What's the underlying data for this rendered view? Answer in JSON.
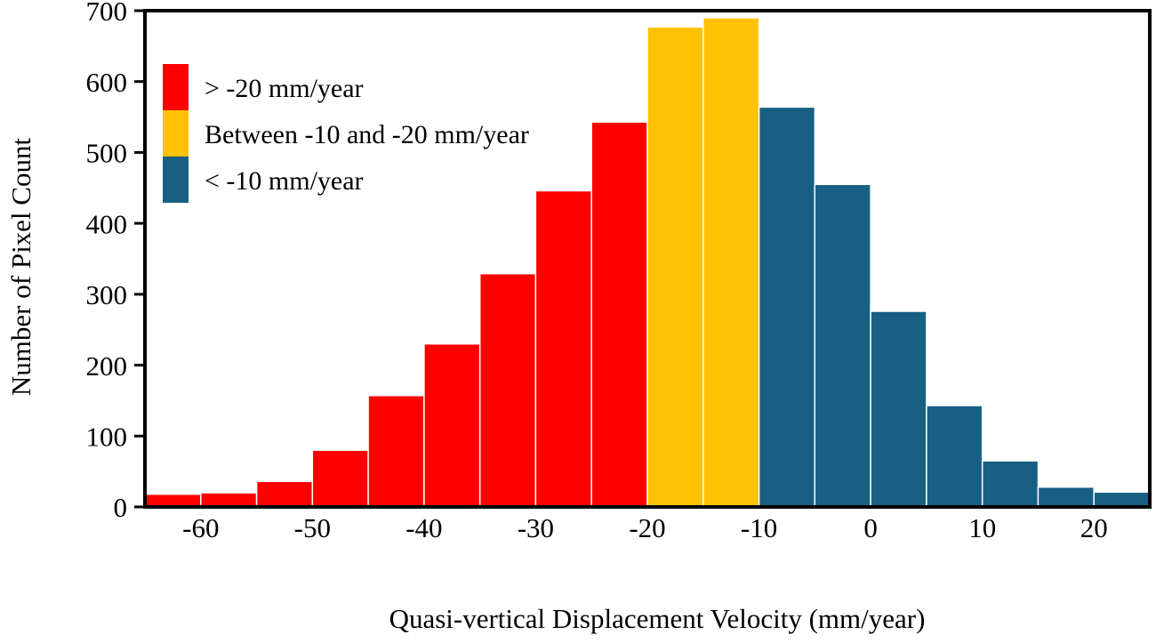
{
  "figure": {
    "background": "#ffffff",
    "axis_color": "#000000",
    "bar_edge_color": "#ffffff"
  },
  "chart_data": {
    "type": "bar",
    "subtype": "histogram",
    "title": "",
    "xlabel": "Quasi-vertical Displacement Velocity (mm/year)",
    "ylabel": "Number of Pixel Count",
    "xlim": [
      -65,
      25
    ],
    "ylim": [
      0,
      700
    ],
    "x_ticks": [
      -60,
      -50,
      -40,
      -30,
      -20,
      -10,
      0,
      10,
      20
    ],
    "y_ticks": [
      0,
      100,
      200,
      300,
      400,
      500,
      600,
      700
    ],
    "grid": false,
    "legend_position": "upper-left",
    "bin_width": 5,
    "bars": [
      {
        "bin_start": -65,
        "bin_end": -60,
        "value": 18,
        "color": "#FF0000"
      },
      {
        "bin_start": -60,
        "bin_end": -55,
        "value": 20,
        "color": "#FF0000"
      },
      {
        "bin_start": -55,
        "bin_end": -50,
        "value": 36,
        "color": "#FF0000"
      },
      {
        "bin_start": -50,
        "bin_end": -45,
        "value": 80,
        "color": "#FF0000"
      },
      {
        "bin_start": -45,
        "bin_end": -40,
        "value": 157,
        "color": "#FF0000"
      },
      {
        "bin_start": -40,
        "bin_end": -35,
        "value": 230,
        "color": "#FF0000"
      },
      {
        "bin_start": -35,
        "bin_end": -30,
        "value": 329,
        "color": "#FF0000"
      },
      {
        "bin_start": -30,
        "bin_end": -25,
        "value": 446,
        "color": "#FF0000"
      },
      {
        "bin_start": -25,
        "bin_end": -20,
        "value": 543,
        "color": "#FF0000"
      },
      {
        "bin_start": -20,
        "bin_end": -15,
        "value": 677,
        "color": "#FFC104"
      },
      {
        "bin_start": -15,
        "bin_end": -10,
        "value": 690,
        "color": "#FFC104"
      },
      {
        "bin_start": -10,
        "bin_end": -5,
        "value": 564,
        "color": "#176083"
      },
      {
        "bin_start": -5,
        "bin_end": 0,
        "value": 455,
        "color": "#176083"
      },
      {
        "bin_start": 0,
        "bin_end": 5,
        "value": 276,
        "color": "#176083"
      },
      {
        "bin_start": 5,
        "bin_end": 10,
        "value": 143,
        "color": "#176083"
      },
      {
        "bin_start": 10,
        "bin_end": 15,
        "value": 65,
        "color": "#176083"
      },
      {
        "bin_start": 15,
        "bin_end": 20,
        "value": 28,
        "color": "#176083"
      },
      {
        "bin_start": 20,
        "bin_end": 25,
        "value": 21,
        "color": "#176083"
      }
    ],
    "legend": [
      {
        "label": "> -20 mm/year",
        "color": "#FF0000"
      },
      {
        "label": "Between -10 and -20 mm/year",
        "color": "#FFC104"
      },
      {
        "label": "< -10 mm/year",
        "color": "#176083"
      }
    ]
  }
}
